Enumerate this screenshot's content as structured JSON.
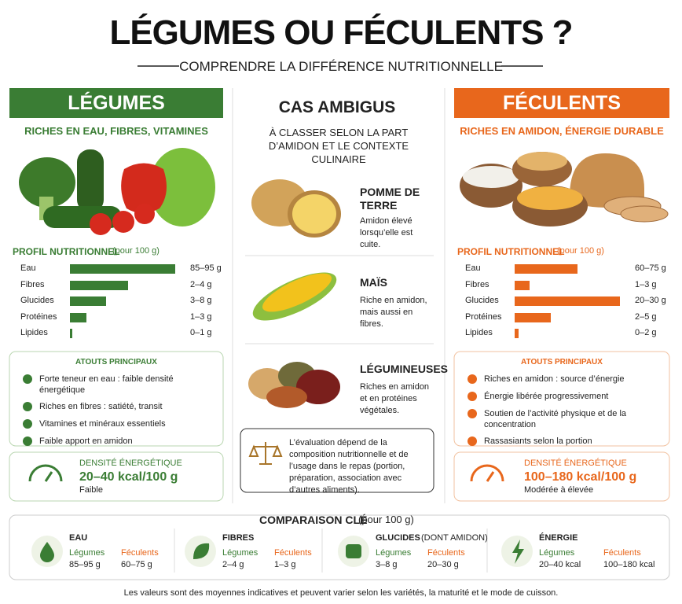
{
  "header": {
    "title": "LÉGUMES OU FÉCULENTS ?",
    "subtitle": "COMPRENDRE LA DIFFÉRENCE NUTRITIONNELLE"
  },
  "legumes": {
    "title": "LÉGUMES",
    "tagline": "RICHES EN EAU, FIBRES, VITAMINES",
    "color": "#3a7d34",
    "profile": {
      "title": "PROFIL NUTRITIONNEL",
      "unit": "(pour 100 g)",
      "xlim": [
        0,
        100
      ],
      "rows": [
        {
          "label": "Eau",
          "bar": 100,
          "range": "85–95 g"
        },
        {
          "label": "Fibres",
          "bar": 55,
          "range": "2–4 g"
        },
        {
          "label": "Glucides",
          "bar": 34,
          "range": "3–8 g"
        },
        {
          "label": "Protéines",
          "bar": 16,
          "range": "1–3 g"
        },
        {
          "label": "Lipides",
          "bar": 2,
          "range": "0–1 g"
        }
      ]
    },
    "atouts": {
      "title": "ATOUTS PRINCIPAUX",
      "items": [
        "Forte teneur en eau : faible densité énergétique",
        "Riches en fibres : satiété, transit",
        "Vitamines et minéraux essentiels",
        "Faible apport en amidon"
      ]
    },
    "density": {
      "title": "DENSITÉ ÉNERGÉTIQUE",
      "value": "20–40 kcal/100 g",
      "note": "Faible"
    }
  },
  "ambigus": {
    "title": "CAS AMBIGUS",
    "intro": "À CLASSER SELON LA PART D’AMIDON ET LE CONTEXTE CULINAIRE",
    "items": [
      {
        "name": "POMME DE TERRE",
        "text": "Amidon élevé lorsqu’elle est cuite."
      },
      {
        "name": "MAÏS",
        "text": "Riche en amidon, mais aussi en fibres."
      },
      {
        "name": "LÉGUMINEUSES",
        "text": "Riches en amidon et en protéines végétales."
      }
    ],
    "note": "L’évaluation dépend de la composition nutritionnelle et de l’usage dans le repas (portion, préparation, association avec d’autres aliments)."
  },
  "feculents": {
    "title": "FÉCULENTS",
    "tagline": "RICHES EN AMIDON, ÉNERGIE DURABLE",
    "color": "#e8671c",
    "profile": {
      "title": "PROFIL NUTRITIONNEL",
      "unit": "(pour 100 g)",
      "xlim": [
        0,
        100
      ],
      "rows": [
        {
          "label": "Eau",
          "bar": 60,
          "range": "60–75 g"
        },
        {
          "label": "Fibres",
          "bar": 14,
          "range": "1–3 g"
        },
        {
          "label": "Glucides",
          "bar": 100,
          "range": "20–30 g"
        },
        {
          "label": "Protéines",
          "bar": 34,
          "range": "2–5 g"
        },
        {
          "label": "Lipides",
          "bar": 4,
          "range": "0–2 g"
        }
      ]
    },
    "atouts": {
      "title": "ATOUTS PRINCIPAUX",
      "items": [
        "Riches en amidon : source d’énergie",
        "Énergie libérée progressivement",
        "Soutien de l’activité physique et de la concentration",
        "Rassasiants selon la portion"
      ]
    },
    "density": {
      "title": "DENSITÉ ÉNERGÉTIQUE",
      "value": "100–180 kcal/100 g",
      "note": "Modérée à élevée"
    }
  },
  "comparison": {
    "title": "COMPARAISON CLÉ",
    "unit": "(pour 100 g)",
    "items": [
      {
        "name": "EAU",
        "legumes_label": "Légumes",
        "legumes_value": "85–95 g",
        "feculents_label": "Féculents",
        "feculents_value": "60–75 g"
      },
      {
        "name": "FIBRES",
        "legumes_label": "Légumes",
        "legumes_value": "2–4 g",
        "feculents_label": "Féculents",
        "feculents_value": "1–3 g"
      },
      {
        "name": "GLUCIDES",
        "qualifier": "(DONT AMIDON)",
        "legumes_label": "Légumes",
        "legumes_value": "3–8 g",
        "feculents_label": "Féculents",
        "feculents_value": "20–30 g"
      },
      {
        "name": "ÉNERGIE",
        "legumes_label": "Légumes",
        "legumes_value": "20–40 kcal",
        "feculents_label": "Féculents",
        "feculents_value": "100–180 kcal"
      }
    ]
  },
  "footer": "Les valeurs sont des moyennes indicatives et peuvent varier selon les variétés, la maturité et le mode de cuisson."
}
